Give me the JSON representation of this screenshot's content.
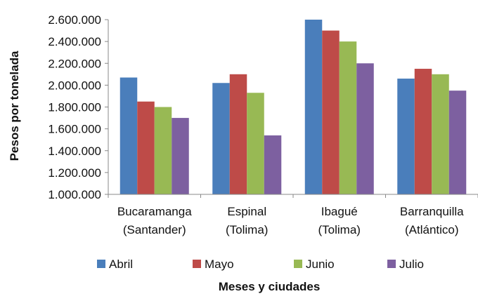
{
  "chart_data": {
    "type": "bar",
    "ylabel": "Pesos por tonelada",
    "xlabel": "Meses y ciudades",
    "ylim": [
      1000000,
      2600000
    ],
    "ytick_step": 200000,
    "ytick_labels": [
      "1.000.000",
      "1.200.000",
      "1.400.000",
      "1.600.000",
      "1.800.000",
      "2.000.000",
      "2.200.000",
      "2.400.000",
      "2.600.000"
    ],
    "categories": [
      [
        "Bucaramanga",
        "(Santander)"
      ],
      [
        "Espinal",
        "(Tolima)"
      ],
      [
        "Ibagué",
        "(Tolima)"
      ],
      [
        "Barranquilla",
        "(Atlántico)"
      ]
    ],
    "series": [
      {
        "name": "Abril",
        "color": "#4a7ebb",
        "values": [
          2070000,
          2020000,
          2600000,
          2060000
        ]
      },
      {
        "name": "Mayo",
        "color": "#be4b48",
        "values": [
          1850000,
          2100000,
          2500000,
          2150000
        ]
      },
      {
        "name": "Junio",
        "color": "#98b954",
        "values": [
          1800000,
          1930000,
          2400000,
          2100000
        ]
      },
      {
        "name": "Julio",
        "color": "#7d60a0",
        "values": [
          1700000,
          1540000,
          2200000,
          1950000
        ]
      }
    ],
    "legend_position": "bottom",
    "grid": false
  }
}
